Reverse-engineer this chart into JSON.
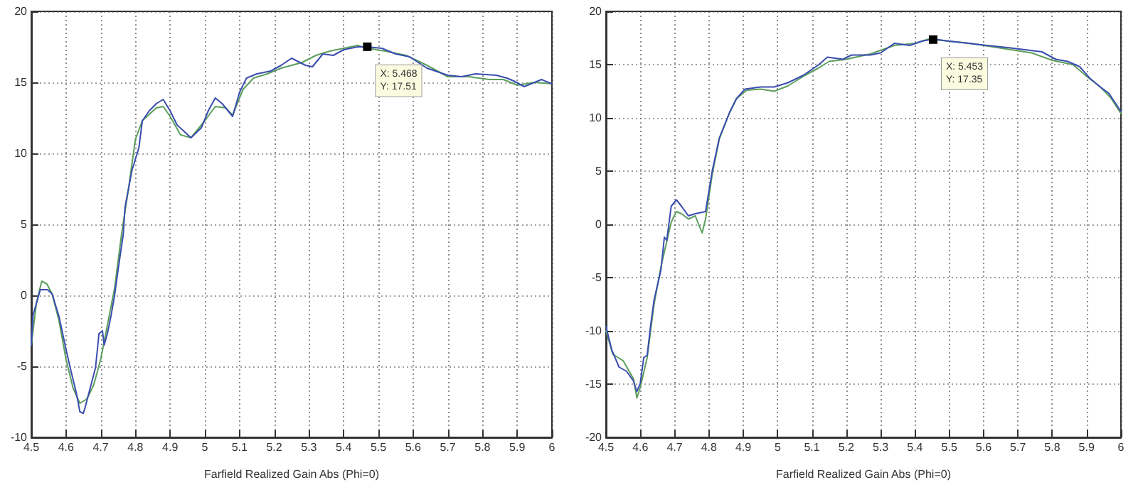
{
  "chart_data": [
    {
      "type": "line",
      "xlabel": "Farfield Realized Gain Abs (Phi=0)",
      "xlim": [
        4.5,
        6
      ],
      "xticks": [
        4.5,
        4.6,
        4.7,
        4.8,
        4.9,
        5,
        5.1,
        5.2,
        5.3,
        5.4,
        5.5,
        5.6,
        5.7,
        5.8,
        5.9,
        6
      ],
      "ylim": [
        -10,
        20
      ],
      "yticks": [
        -10,
        -5,
        0,
        5,
        10,
        15,
        20
      ],
      "grid": true,
      "marker": "none",
      "line_style": "solid",
      "annotations": [
        {
          "text": "X: 5.468\nY: 17.51",
          "x": 5.468,
          "y": 17.51
        }
      ],
      "series": [
        {
          "color": "#5c9e5c",
          "x": [
            4.5,
            4.515,
            4.53,
            4.545,
            4.56,
            4.58,
            4.6,
            4.62,
            4.64,
            4.66,
            4.68,
            4.7,
            4.72,
            4.74,
            4.76,
            4.78,
            4.8,
            4.82,
            4.86,
            4.88,
            4.9,
            4.93,
            4.96,
            5.0,
            5.03,
            5.06,
            5.08,
            5.11,
            5.14,
            5.18,
            5.22,
            5.25,
            5.28,
            5.32,
            5.36,
            5.4,
            5.44,
            5.47,
            5.52,
            5.58,
            5.64,
            5.7,
            5.76,
            5.82,
            5.86,
            5.9,
            5.95,
            6.0
          ],
          "values": [
            -3.5,
            -0.5,
            1.0,
            0.8,
            0.1,
            -1.8,
            -4.5,
            -6.5,
            -7.6,
            -7.3,
            -6.3,
            -4.5,
            -2.0,
            0.5,
            4.3,
            7.5,
            11.0,
            12.3,
            13.2,
            13.3,
            12.6,
            11.3,
            11.1,
            12.3,
            13.3,
            13.2,
            12.7,
            14.5,
            15.3,
            15.6,
            16.0,
            16.2,
            16.4,
            16.9,
            17.2,
            17.4,
            17.6,
            17.4,
            17.2,
            16.9,
            16.2,
            15.4,
            15.4,
            15.2,
            15.2,
            14.8,
            15.0,
            14.9
          ]
        },
        {
          "color": "#3a4db0",
          "x": [
            4.5,
            4.505,
            4.526,
            4.547,
            4.56,
            4.58,
            4.6,
            4.615,
            4.63,
            4.64,
            4.65,
            4.655,
            4.67,
            4.685,
            4.695,
            4.705,
            4.71,
            4.72,
            4.73,
            4.74,
            4.75,
            4.765,
            4.77,
            4.79,
            4.81,
            4.82,
            4.84,
            4.86,
            4.88,
            4.9,
            4.92,
            4.96,
            4.99,
            5.01,
            5.03,
            5.05,
            5.08,
            5.1,
            5.12,
            5.15,
            5.19,
            5.22,
            5.25,
            5.29,
            5.31,
            5.34,
            5.37,
            5.4,
            5.44,
            5.468,
            5.51,
            5.55,
            5.59,
            5.64,
            5.7,
            5.74,
            5.78,
            5.84,
            5.87,
            5.89,
            5.92,
            5.95,
            5.97,
            6.0
          ],
          "values": [
            -3.5,
            -1.4,
            0.4,
            0.4,
            0.1,
            -1.5,
            -3.8,
            -5.4,
            -6.9,
            -8.2,
            -8.3,
            -7.9,
            -6.5,
            -5.1,
            -2.7,
            -2.5,
            -3.5,
            -2.6,
            -1.4,
            0,
            1.8,
            4.3,
            6.2,
            8.8,
            10.4,
            12.3,
            13.0,
            13.5,
            13.8,
            13.0,
            12.0,
            11.1,
            11.8,
            13.0,
            13.9,
            13.5,
            12.6,
            14.3,
            15.3,
            15.6,
            15.8,
            16.2,
            16.7,
            16.2,
            16.1,
            17.0,
            16.9,
            17.3,
            17.5,
            17.5,
            17.4,
            17.0,
            16.8,
            16.0,
            15.5,
            15.4,
            15.6,
            15.5,
            15.3,
            15.1,
            14.7,
            15.0,
            15.2,
            14.9
          ]
        }
      ]
    },
    {
      "type": "line",
      "xlabel": "Farfield Realized Gain Abs (Phi=0)",
      "xlim": [
        4.5,
        6
      ],
      "xticks": [
        4.5,
        4.6,
        4.7,
        4.8,
        4.9,
        5,
        5.1,
        5.2,
        5.3,
        5.4,
        5.5,
        5.6,
        5.7,
        5.8,
        5.9,
        6
      ],
      "ylim": [
        -20,
        20
      ],
      "yticks": [
        -20,
        -15,
        -10,
        -5,
        0,
        5,
        10,
        15,
        20
      ],
      "grid": true,
      "marker": "none",
      "line_style": "solid",
      "annotations": [
        {
          "text": "X: 5.453\nY: 17.35",
          "x": 5.453,
          "y": 17.35
        }
      ],
      "series": [
        {
          "color": "#5c9e5c",
          "x": [
            4.5,
            4.52,
            4.55,
            4.58,
            4.59,
            4.6,
            4.62,
            4.64,
            4.66,
            4.68,
            4.69,
            4.705,
            4.72,
            4.74,
            4.76,
            4.78,
            4.79,
            4.81,
            4.83,
            4.86,
            4.88,
            4.91,
            4.95,
            4.99,
            5.03,
            5.08,
            5.12,
            5.15,
            5.2,
            5.27,
            5.34,
            5.4,
            5.44,
            5.5,
            5.56,
            5.62,
            5.68,
            5.74,
            5.8,
            5.86,
            5.9,
            5.94,
            5.97,
            6.0
          ],
          "values": [
            -10,
            -12.2,
            -12.8,
            -14.5,
            -16.3,
            -15.3,
            -12.5,
            -7.5,
            -4.0,
            -1.2,
            0.2,
            1.2,
            1.0,
            0.5,
            0.8,
            -0.8,
            0.5,
            4.8,
            8.0,
            10.5,
            11.8,
            12.6,
            12.7,
            12.5,
            13.0,
            14.0,
            14.7,
            15.3,
            15.5,
            16.0,
            16.8,
            17.0,
            17.4,
            17.2,
            17.0,
            16.7,
            16.4,
            16.1,
            15.4,
            15.0,
            13.9,
            12.9,
            11.9,
            10.4
          ]
        },
        {
          "color": "#3a4db0",
          "x": [
            4.5,
            4.517,
            4.538,
            4.56,
            4.58,
            4.59,
            4.6,
            4.61,
            4.62,
            4.63,
            4.64,
            4.66,
            4.67,
            4.677,
            4.69,
            4.705,
            4.72,
            4.74,
            4.76,
            4.79,
            4.81,
            4.83,
            4.86,
            4.88,
            4.905,
            4.95,
            4.99,
            5.03,
            5.075,
            5.12,
            5.145,
            5.19,
            5.215,
            5.27,
            5.3,
            5.34,
            5.385,
            5.42,
            5.453,
            5.5,
            5.555,
            5.61,
            5.67,
            5.72,
            5.77,
            5.81,
            5.845,
            5.88,
            5.91,
            5.94,
            5.965,
            6.0
          ],
          "values": [
            -9.6,
            -11.8,
            -13.4,
            -13.8,
            -14.7,
            -15.7,
            -14.9,
            -12.5,
            -12.3,
            -9.5,
            -7.1,
            -4.3,
            -1.2,
            -1.5,
            1.7,
            2.3,
            1.7,
            0.8,
            1.0,
            1.2,
            5.1,
            8.1,
            10.5,
            11.8,
            12.7,
            12.9,
            12.9,
            13.3,
            14.0,
            15.0,
            15.7,
            15.5,
            15.9,
            15.9,
            16.1,
            17.0,
            16.8,
            17.2,
            17.4,
            17.2,
            17.0,
            16.8,
            16.6,
            16.4,
            16.2,
            15.5,
            15.3,
            14.8,
            13.7,
            12.9,
            12.3,
            10.6
          ]
        }
      ]
    }
  ]
}
